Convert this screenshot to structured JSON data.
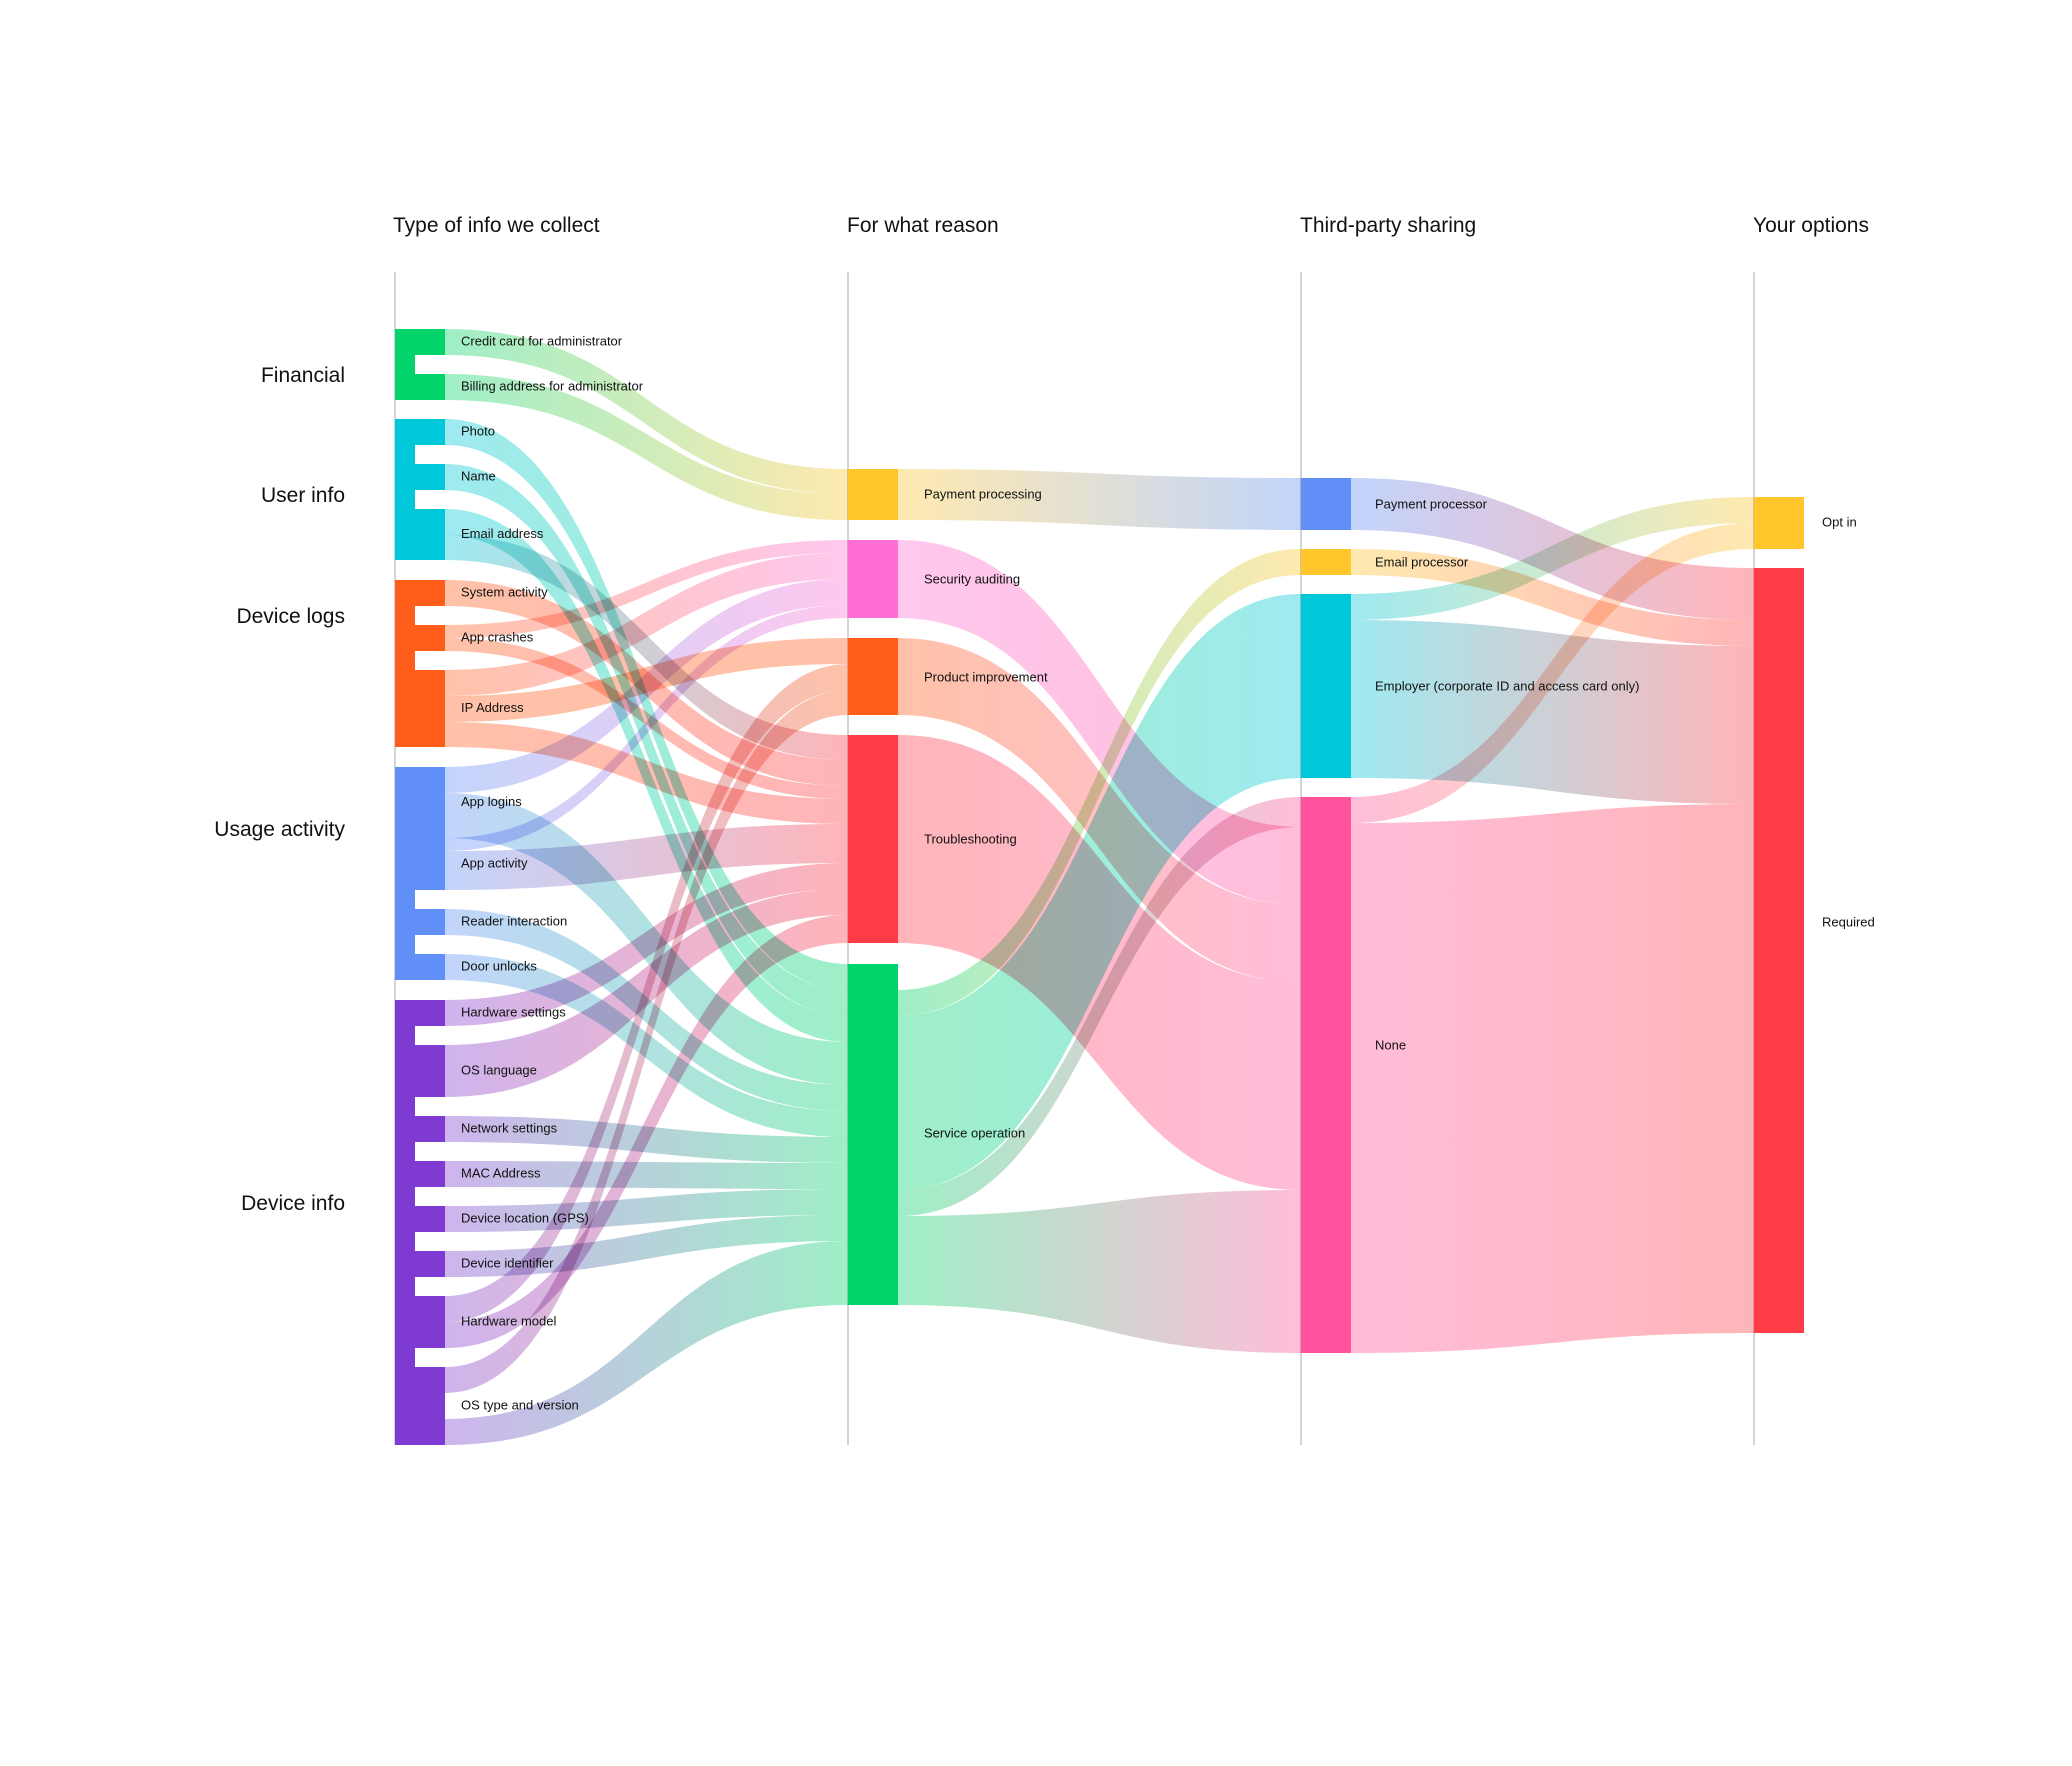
{
  "columns": [
    {
      "title": "Type of info we collect"
    },
    {
      "title": "For what reason"
    },
    {
      "title": "Third-party sharing"
    },
    {
      "title": "Your options"
    }
  ],
  "groups": [
    {
      "id": "financial",
      "label": "Financial",
      "color": "#00d46a"
    },
    {
      "id": "user",
      "label": "User info",
      "color": "#00c8d9"
    },
    {
      "id": "logs",
      "label": "Device logs",
      "color": "#ff5e1a"
    },
    {
      "id": "usage",
      "label": "Usage activity",
      "color": "#5f8ff7"
    },
    {
      "id": "device",
      "label": "Device info",
      "color": "#7f3bd1"
    }
  ],
  "data_types": [
    {
      "id": "cc",
      "label": "Credit card for administrator",
      "group": "financial"
    },
    {
      "id": "billing",
      "label": "Billing address for administrator",
      "group": "financial"
    },
    {
      "id": "photo",
      "label": "Photo",
      "group": "user"
    },
    {
      "id": "name",
      "label": "Name",
      "group": "user"
    },
    {
      "id": "email",
      "label": "Email address",
      "group": "user"
    },
    {
      "id": "sysact",
      "label": "System activity",
      "group": "logs"
    },
    {
      "id": "crash",
      "label": "App crashes",
      "group": "logs"
    },
    {
      "id": "ip",
      "label": "IP Address",
      "group": "logs"
    },
    {
      "id": "logins",
      "label": "App logins",
      "group": "usage"
    },
    {
      "id": "appact",
      "label": "App activity",
      "group": "usage"
    },
    {
      "id": "reader",
      "label": "Reader interaction",
      "group": "usage"
    },
    {
      "id": "door",
      "label": "Door unlocks",
      "group": "usage"
    },
    {
      "id": "hwset",
      "label": "Hardware settings",
      "group": "device"
    },
    {
      "id": "oslang",
      "label": "OS language",
      "group": "device"
    },
    {
      "id": "netset",
      "label": "Network settings",
      "group": "device"
    },
    {
      "id": "mac",
      "label": "MAC Address",
      "group": "device"
    },
    {
      "id": "gps",
      "label": "Device location (GPS)",
      "group": "device"
    },
    {
      "id": "devid",
      "label": "Device identifier",
      "group": "device"
    },
    {
      "id": "hwmodel",
      "label": "Hardware model",
      "group": "device"
    },
    {
      "id": "ostype",
      "label": "OS type and version",
      "group": "device"
    }
  ],
  "reasons": [
    {
      "id": "pay",
      "label": "Payment processing",
      "color": "#ffc72c"
    },
    {
      "id": "sec",
      "label": "Security auditing",
      "color": "#ff6ed4"
    },
    {
      "id": "prod",
      "label": "Product improvement",
      "color": "#ff5e1a"
    },
    {
      "id": "trouble",
      "label": "Troubleshooting",
      "color": "#ff3b47"
    },
    {
      "id": "svc",
      "label": "Service operation",
      "color": "#00d46a"
    }
  ],
  "sharing": [
    {
      "id": "payproc",
      "label": "Payment processor",
      "color": "#5f8ff7"
    },
    {
      "id": "emailproc",
      "label": "Email processor",
      "color": "#ffc72c"
    },
    {
      "id": "employer",
      "label": "Employer (corporate ID and access card only)",
      "color": "#00c8d9"
    },
    {
      "id": "none",
      "label": "None",
      "color": "#ff519c"
    }
  ],
  "options": [
    {
      "id": "optin",
      "label": "Opt in",
      "color": "#ffc72c"
    },
    {
      "id": "required",
      "label": "Required",
      "color": "#ff3b47"
    }
  ],
  "flows": {
    "type_to_reason": [
      [
        "cc",
        "pay"
      ],
      [
        "billing",
        "pay"
      ],
      [
        "photo",
        "svc"
      ],
      [
        "name",
        "svc"
      ],
      [
        "email",
        "svc"
      ],
      [
        "email",
        "trouble"
      ],
      [
        "sysact",
        "trouble"
      ],
      [
        "sysact",
        "trouble"
      ],
      [
        "crash",
        "sec"
      ],
      [
        "crash",
        "trouble"
      ],
      [
        "ip",
        "sec"
      ],
      [
        "ip",
        "prod"
      ],
      [
        "ip",
        "trouble"
      ],
      [
        "logins",
        "sec"
      ],
      [
        "logins",
        "svc"
      ],
      [
        "appact",
        "sec"
      ],
      [
        "appact",
        "trouble"
      ],
      [
        "reader",
        "svc"
      ],
      [
        "door",
        "svc"
      ],
      [
        "hwset",
        "trouble"
      ],
      [
        "oslang",
        "trouble"
      ],
      [
        "netset",
        "svc"
      ],
      [
        "mac",
        "svc"
      ],
      [
        "gps",
        "svc"
      ],
      [
        "devid",
        "svc"
      ],
      [
        "hwmodel",
        "prod"
      ],
      [
        "hwmodel",
        "trouble"
      ],
      [
        "hwmodel",
        "svc"
      ],
      [
        "ostype",
        "prod"
      ],
      [
        "ostype",
        "trouble"
      ],
      [
        "ostype",
        "svc"
      ]
    ],
    "reason_to_sharing": [
      [
        "pay",
        "payproc"
      ],
      [
        "sec",
        "none"
      ],
      [
        "prod",
        "none"
      ],
      [
        "trouble",
        "none"
      ],
      [
        "svc",
        "emailproc"
      ],
      [
        "svc",
        "employer"
      ],
      [
        "svc",
        "employer"
      ],
      [
        "svc",
        "none"
      ]
    ],
    "sharing_to_option": [
      [
        "payproc",
        "required"
      ],
      [
        "emailproc",
        "required"
      ],
      [
        "employer",
        "optin"
      ],
      [
        "employer",
        "required"
      ],
      [
        "none",
        "optin"
      ],
      [
        "none",
        "required"
      ]
    ]
  }
}
